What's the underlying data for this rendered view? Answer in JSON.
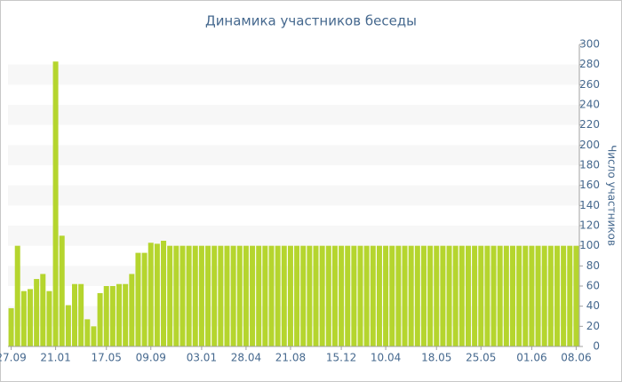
{
  "chart_data": {
    "type": "bar",
    "title": "Динамика участников беседы",
    "y_axis_label": "Число участников",
    "categories": [
      "27.09",
      null,
      null,
      null,
      null,
      null,
      null,
      "21.01",
      null,
      null,
      null,
      null,
      null,
      null,
      null,
      "17.05",
      null,
      null,
      null,
      null,
      null,
      null,
      "09.09",
      null,
      null,
      null,
      null,
      null,
      null,
      null,
      "03.01",
      null,
      null,
      null,
      null,
      null,
      null,
      "28.04",
      null,
      null,
      null,
      null,
      null,
      null,
      "21.08",
      null,
      null,
      null,
      null,
      null,
      null,
      null,
      "15.12",
      null,
      null,
      null,
      null,
      null,
      null,
      "10.04",
      null,
      null,
      null,
      null,
      null,
      null,
      null,
      "18.05",
      null,
      null,
      null,
      null,
      null,
      null,
      "25.05",
      null,
      null,
      null,
      null,
      null,
      null,
      null,
      "01.06",
      null,
      null,
      null,
      null,
      null,
      null,
      "08.06"
    ],
    "values": [
      38,
      100,
      55,
      57,
      67,
      72,
      55,
      283,
      110,
      41,
      62,
      62,
      27,
      20,
      53,
      60,
      60,
      62,
      62,
      72,
      93,
      93,
      103,
      102,
      105,
      100,
      100,
      100,
      100,
      100,
      100,
      100,
      100,
      100,
      100,
      100,
      100,
      100,
      100,
      100,
      100,
      100,
      100,
      100,
      100,
      100,
      100,
      100,
      100,
      100,
      100,
      100,
      100,
      100,
      100,
      100,
      100,
      100,
      100,
      100,
      100,
      100,
      100,
      100,
      100,
      100,
      100,
      100,
      100,
      100,
      100,
      100,
      100,
      100,
      100,
      100,
      100,
      100,
      100,
      100,
      100,
      100,
      100,
      100,
      100,
      100,
      100,
      100,
      100,
      100
    ],
    "color": "#b5d52e",
    "ylim": [
      0,
      300
    ],
    "yticks": [
      0,
      20,
      40,
      60,
      80,
      100,
      120,
      140,
      160,
      180,
      200,
      220,
      240,
      260,
      280,
      300
    ],
    "y_axis_side": "right",
    "grid": true
  }
}
